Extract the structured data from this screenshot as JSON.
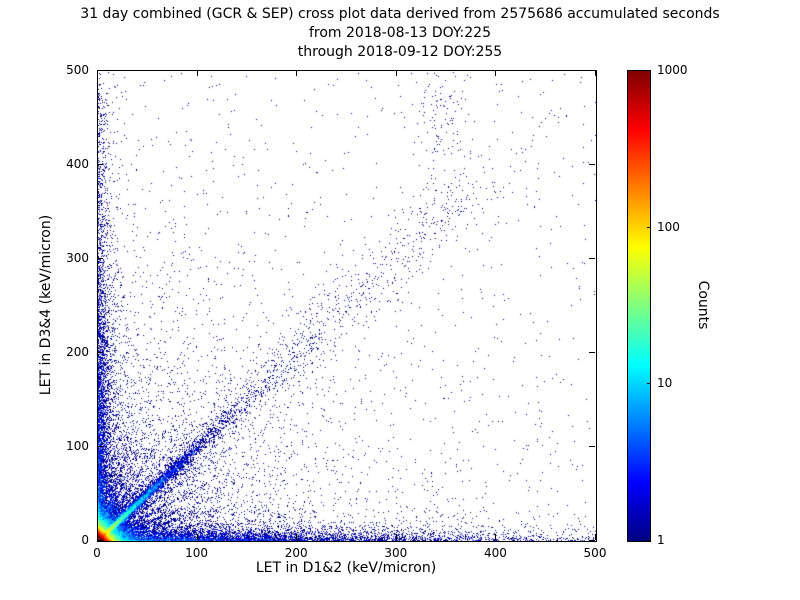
{
  "chart_data": {
    "type": "scatter",
    "title_lines": [
      "31 day combined (GCR & SEP) cross plot data derived from 2575686 accumulated seconds",
      "from 2018-08-13 DOY:225",
      "through 2018-09-12 DOY:255"
    ],
    "xlabel": "LET in D1&2 (keV/micron)",
    "ylabel": "LET in D3&4 (keV/micron)",
    "xlim": [
      0,
      500
    ],
    "ylim": [
      0,
      500
    ],
    "xticks": [
      0,
      100,
      200,
      300,
      400,
      500
    ],
    "yticks": [
      0,
      100,
      200,
      300,
      400,
      500
    ],
    "grid": false,
    "colorbar": {
      "label": "Counts",
      "scale": "log",
      "min": 1,
      "max": 1000,
      "ticks": [
        1000,
        100,
        10,
        1
      ],
      "colormap": "jet"
    },
    "density_model": {
      "seed": 42,
      "note": "counts histogram; color = jet(log10(count)/3)",
      "clusters": [
        {
          "type": "exp2d",
          "n": 50000,
          "sx": 3,
          "sy": 3
        },
        {
          "type": "exp2d",
          "n": 15000,
          "sx": 8,
          "sy": 8
        },
        {
          "type": "exp2d",
          "n": 5000,
          "sx": 6,
          "sy": 150
        },
        {
          "type": "exp2d",
          "n": 6000,
          "sx": 150,
          "sy": 6
        },
        {
          "type": "exp2d",
          "n": 2500,
          "sx": 60,
          "sy": 60
        },
        {
          "type": "exp2d",
          "n": 2000,
          "sx": 120,
          "sy": 120
        },
        {
          "type": "diag",
          "n": 8000,
          "scale": 30,
          "noise_base": 0.8,
          "noise_frac": 0.03
        },
        {
          "type": "diag",
          "n": 1500,
          "scale": 90,
          "noise_base": 1.5,
          "noise_frac": 0.05
        },
        {
          "type": "diag_uniform",
          "n": 700,
          "tmax": 380,
          "noise": 18
        },
        {
          "type": "uniform",
          "n": 700
        },
        {
          "type": "rays",
          "slopes": [
            3.2,
            2.4,
            1.75,
            1.35,
            0.75,
            0.55,
            0.4,
            0.28
          ],
          "n_per": 350,
          "scale": 35,
          "noise": 1.2
        },
        {
          "type": "blob",
          "n": 120,
          "cx": 345,
          "cy": 450,
          "sx": 12,
          "sy": 40
        }
      ]
    }
  }
}
